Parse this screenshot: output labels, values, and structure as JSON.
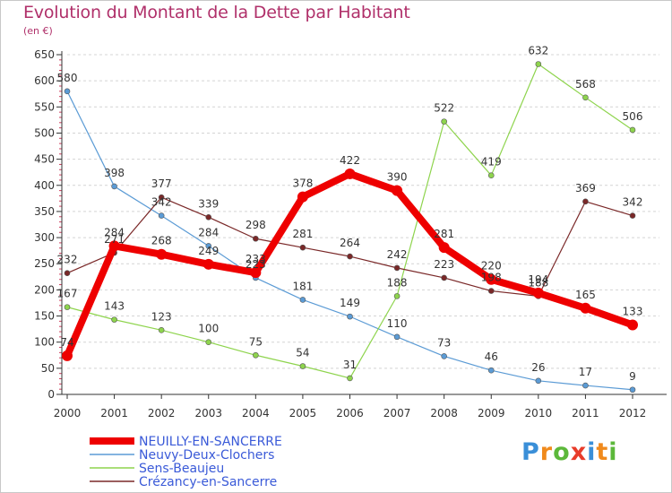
{
  "header": {
    "title": "Evolution du Montant de la Dette par Habitant",
    "unit": "(en €)"
  },
  "logo": {
    "letters": [
      "P",
      "r",
      "o",
      "x",
      "i",
      "t",
      "i"
    ],
    "colors": [
      "#3a8fd8",
      "#f08a1c",
      "#5cb83a",
      "#e83c2a",
      "#3a8fd8",
      "#f08a1c",
      "#5cb83a"
    ]
  },
  "chart_data": {
    "type": "line",
    "title": "Evolution du Montant de la Dette par Habitant",
    "ylabel": "(en €)",
    "xlabel": "",
    "ylim": [
      0,
      650
    ],
    "yticks": [
      0,
      50,
      100,
      150,
      200,
      250,
      300,
      350,
      400,
      450,
      500,
      550,
      600,
      650
    ],
    "x": [
      "2000",
      "2001",
      "2002",
      "2003",
      "2004",
      "2005",
      "2006",
      "2007",
      "2008",
      "2009",
      "2010",
      "2011",
      "2012"
    ],
    "grid": "horizontal dashed",
    "legend_position": "bottom-left",
    "series": [
      {
        "name": "NEUILLY-EN-SANCERRE",
        "color": "#ee0000",
        "style": "thick",
        "values": [
          74,
          284,
          268,
          249,
          233,
          378,
          422,
          390,
          281,
          220,
          194,
          165,
          133
        ],
        "labels": [
          "74",
          "284",
          "268",
          "249",
          "233",
          "378",
          "422",
          "390",
          "281",
          "220",
          "194",
          "165",
          "133"
        ]
      },
      {
        "name": "Neuvy-Deux-Clochers",
        "color": "#5b9bd5",
        "style": "thin",
        "values": [
          580,
          398,
          342,
          284,
          223,
          181,
          149,
          110,
          73,
          46,
          26,
          17,
          9
        ],
        "labels": [
          "580",
          "398",
          "342",
          "284",
          "223",
          "181",
          "149",
          "110",
          "73",
          "46",
          "26",
          "17",
          "9"
        ]
      },
      {
        "name": "Sens-Beaujeu",
        "color": "#8ed44d",
        "style": "thin",
        "values": [
          167,
          143,
          123,
          100,
          75,
          54,
          31,
          188,
          522,
          419,
          632,
          568,
          506
        ],
        "labels": [
          "167",
          "143",
          "123",
          "100",
          "75",
          "54",
          "31",
          "188",
          "522",
          "419",
          "632",
          "568",
          "506"
        ]
      },
      {
        "name": "Crézancy-en-Sancerre",
        "color": "#7a2828",
        "style": "thin",
        "values": [
          232,
          271,
          377,
          339,
          298,
          281,
          264,
          242,
          223,
          198,
          188,
          369,
          342
        ],
        "labels": [
          "232",
          "271",
          "377",
          "339",
          "298",
          "281",
          "264",
          "242",
          "223",
          "198",
          "188",
          "369",
          "342"
        ]
      }
    ]
  }
}
